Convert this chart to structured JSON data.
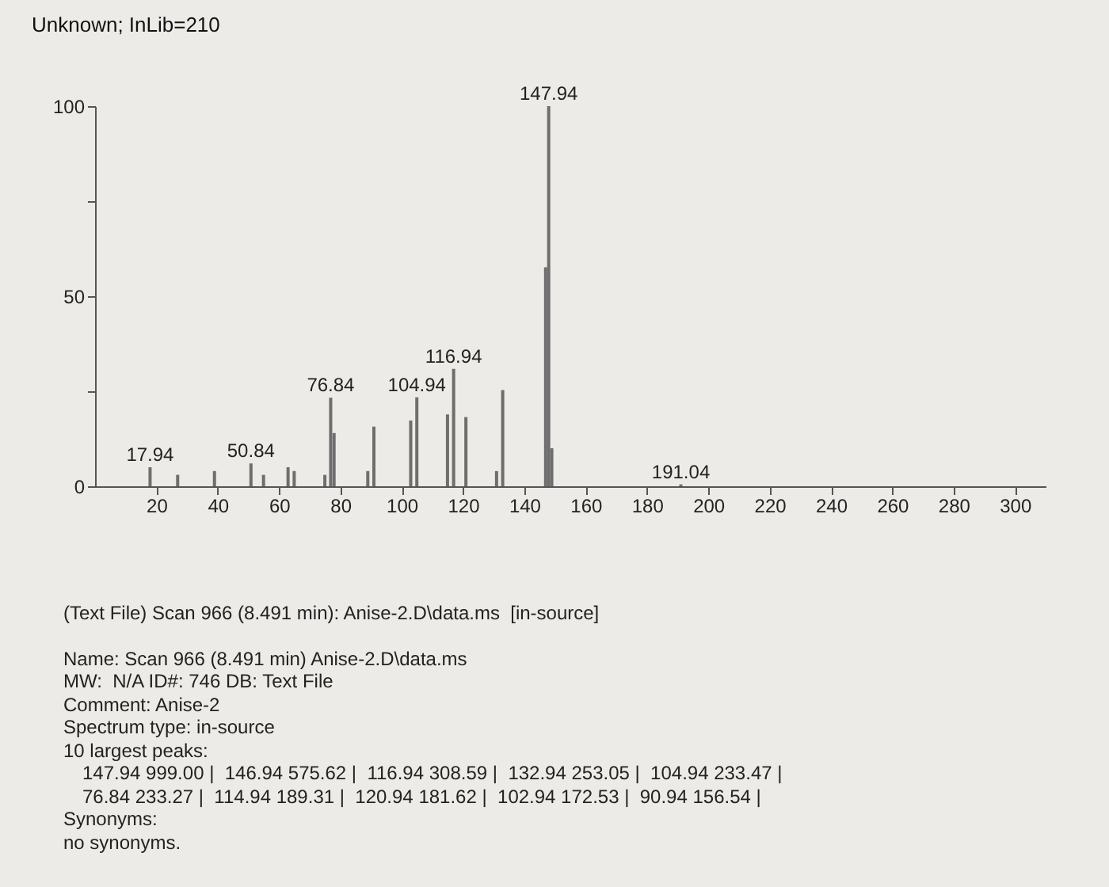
{
  "chart_data": {
    "type": "bar",
    "title": "Unknown; InLib=210",
    "x": [
      17.94,
      26.94,
      38.94,
      50.84,
      54.94,
      62.94,
      64.94,
      74.94,
      76.84,
      77.94,
      88.94,
      90.94,
      102.94,
      104.94,
      114.94,
      116.94,
      120.94,
      130.94,
      132.94,
      146.94,
      147.94,
      148.94,
      191.04
    ],
    "series": [
      {
        "color": "#6e6e6e",
        "values": [
          5,
          3,
          4,
          6,
          3,
          5,
          4,
          3,
          23.3,
          14,
          4,
          15.7,
          17.3,
          23.4,
          18.9,
          30.9,
          18.2,
          4,
          25.3,
          57.6,
          100,
          10,
          0.5
        ]
      }
    ],
    "xlim": [
      0,
      310
    ],
    "xticks": [
      20,
      40,
      60,
      80,
      100,
      120,
      140,
      160,
      180,
      200,
      220,
      240,
      260,
      280,
      300
    ],
    "ylim": [
      0,
      100
    ],
    "yticks": [
      0,
      {
        "value": 25,
        "label": null
      },
      50,
      {
        "value": 75,
        "label": null
      },
      100
    ],
    "grid": false,
    "annotations": [
      {
        "text": "17.94",
        "x": 17.94,
        "y": 5
      },
      {
        "text": "50.84",
        "x": 50.84,
        "y": 6
      },
      {
        "text": "76.84",
        "x": 76.84,
        "y": 23.3
      },
      {
        "text": "104.94",
        "x": 104.94,
        "y": 23.4
      },
      {
        "text": "116.94",
        "x": 116.94,
        "y": 30.9
      },
      {
        "text": "147.94",
        "x": 147.94,
        "y": 100
      },
      {
        "text": "191.04",
        "x": 191.04,
        "y": 0.5
      },
      "(Text File) Scan 966 (8.491 min): Anise-2.D\\data.ms  [in-source]",
      "Name: Scan 966 (8.491 min) Anise-2.D\\data.ms",
      "MW:  N/A ID#: 746 DB: Text File",
      "Comment: Anise-2",
      "Spectrum type: in-source",
      "10 largest peaks:",
      "147.94 999.00 |  146.94 575.62 |  116.94 308.59 |  132.94 253.05 |  104.94 233.47 |",
      "76.84 233.27 |  114.94 189.31 |  120.94 181.62 |  102.94 172.53 |  90.94 156.54 |",
      "Synonyms:",
      "no synonyms."
    ]
  }
}
